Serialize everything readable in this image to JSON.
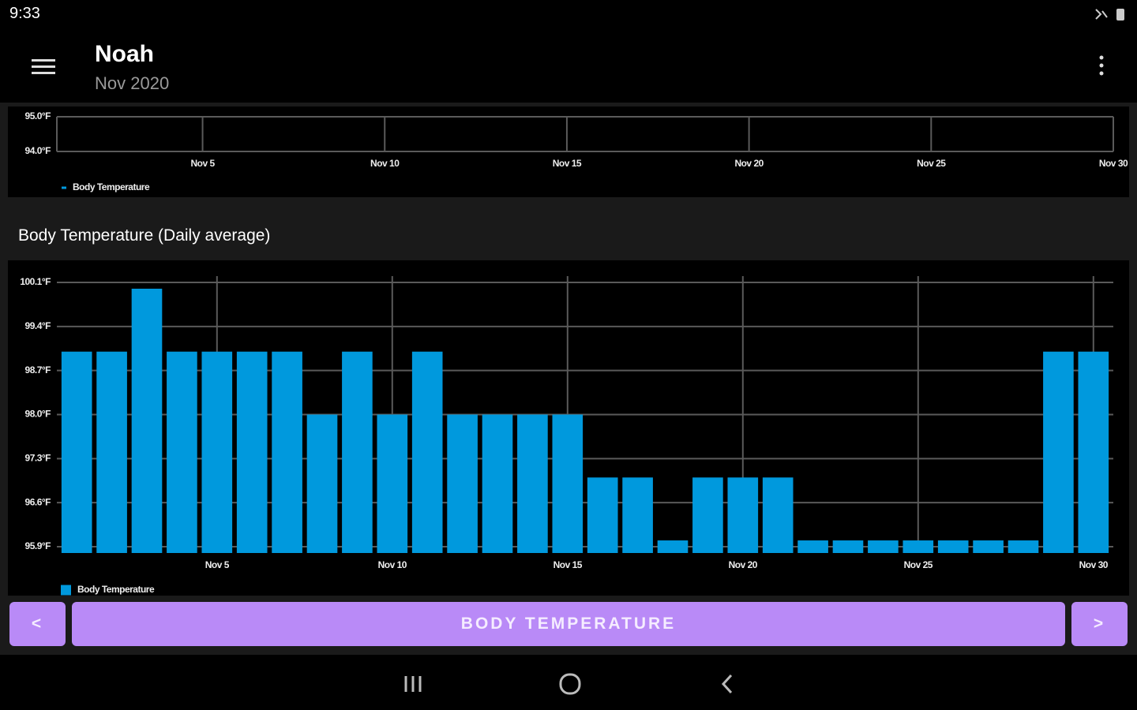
{
  "status_bar": {
    "time": "9:33"
  },
  "header": {
    "title": "Noah",
    "subtitle": "Nov 2020"
  },
  "chart_data": [
    {
      "type": "bar",
      "x": [],
      "xlim": [
        1,
        30
      ],
      "xticks": [
        {
          "value": 5,
          "label": "Nov 5"
        },
        {
          "value": 10,
          "label": "Nov 10"
        },
        {
          "value": 15,
          "label": "Nov 15"
        },
        {
          "value": 20,
          "label": "Nov 20"
        },
        {
          "value": 25,
          "label": "Nov 25"
        },
        {
          "value": 30,
          "label": "Nov 30"
        }
      ],
      "ylim": [
        94.0,
        95.0
      ],
      "yticks": [
        {
          "value": 94.0,
          "label": "94.0°F"
        },
        {
          "value": 95.0,
          "label": "95.0°F"
        }
      ],
      "series": [
        {
          "name": "Body Temperature",
          "color": "#0099dd",
          "values": []
        }
      ],
      "grid": true
    },
    {
      "type": "bar",
      "title": "Body Temperature (Daily average)",
      "x": [
        1,
        2,
        3,
        4,
        5,
        6,
        7,
        8,
        9,
        10,
        11,
        12,
        13,
        14,
        15,
        16,
        17,
        18,
        19,
        20,
        21,
        22,
        23,
        24,
        25,
        26,
        27,
        28,
        29,
        30
      ],
      "xlim": [
        0.5,
        30.5
      ],
      "xticks": [
        {
          "value": 5,
          "label": "Nov 5"
        },
        {
          "value": 10,
          "label": "Nov 10"
        },
        {
          "value": 15,
          "label": "Nov 15"
        },
        {
          "value": 20,
          "label": "Nov 20"
        },
        {
          "value": 25,
          "label": "Nov 25"
        },
        {
          "value": 30,
          "label": "Nov 30"
        }
      ],
      "ylim": [
        95.8,
        100.2
      ],
      "yticks": [
        {
          "value": 95.9,
          "label": "95.9°F"
        },
        {
          "value": 96.6,
          "label": "96.6°F"
        },
        {
          "value": 97.3,
          "label": "97.3°F"
        },
        {
          "value": 98.0,
          "label": "98.0°F"
        },
        {
          "value": 98.7,
          "label": "98.7°F"
        },
        {
          "value": 99.4,
          "label": "99.4°F"
        },
        {
          "value": 100.1,
          "label": "100.1°F"
        }
      ],
      "series": [
        {
          "name": "Body Temperature",
          "color": "#0099dd",
          "values": [
            99.0,
            99.0,
            100.0,
            99.0,
            99.0,
            99.0,
            99.0,
            98.0,
            99.0,
            98.0,
            99.0,
            98.0,
            98.0,
            98.0,
            98.0,
            97.0,
            97.0,
            96.0,
            97.0,
            97.0,
            97.0,
            96.0,
            96.0,
            96.0,
            96.0,
            96.0,
            96.0,
            96.0,
            99.0,
            99.0
          ]
        }
      ],
      "grid": true
    }
  ],
  "nav": {
    "prev": "<",
    "label": "BODY TEMPERATURE",
    "next": ">"
  }
}
